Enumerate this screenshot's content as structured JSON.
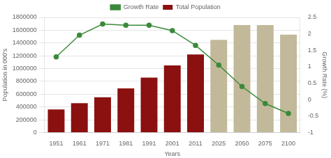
{
  "chart_data": {
    "type": "bar",
    "categories": [
      "1951",
      "1961",
      "1971",
      "1981",
      "1991",
      "2001",
      "2011",
      "2025",
      "2050",
      "2075",
      "2100"
    ],
    "xlabel": "Years",
    "ylabel": "Population in 000's",
    "y2label": "Growth Rate (%)",
    "ylim": [
      0,
      1800000
    ],
    "yticks": [
      0,
      200000,
      400000,
      600000,
      800000,
      1000000,
      1200000,
      1400000,
      1600000,
      1800000
    ],
    "y2lim": [
      -1,
      2.5
    ],
    "y2ticks": [
      -1,
      -0.5,
      0,
      0.5,
      1,
      1.5,
      2,
      2.5
    ],
    "grid": true,
    "legend": "top",
    "series": [
      {
        "name": "Total Population",
        "type": "bar",
        "colors": [
          "#8B1010",
          "#8B1010",
          "#8B1010",
          "#8B1010",
          "#8B1010",
          "#8B1010",
          "#8B1010",
          "#C2B99A",
          "#C2B99A",
          "#C2B99A",
          "#C2B99A"
        ],
        "values": [
          360000,
          460000,
          550000,
          690000,
          860000,
          1050000,
          1220000,
          1450000,
          1680000,
          1680000,
          1530000
        ]
      },
      {
        "name": "Growth Rate",
        "type": "line",
        "axis": "y2",
        "color": "#3A8A3A",
        "marker": "circle",
        "values": [
          1.3,
          1.96,
          2.3,
          2.26,
          2.26,
          2.1,
          1.65,
          1.05,
          0.4,
          -0.12,
          -0.42
        ]
      }
    ]
  }
}
